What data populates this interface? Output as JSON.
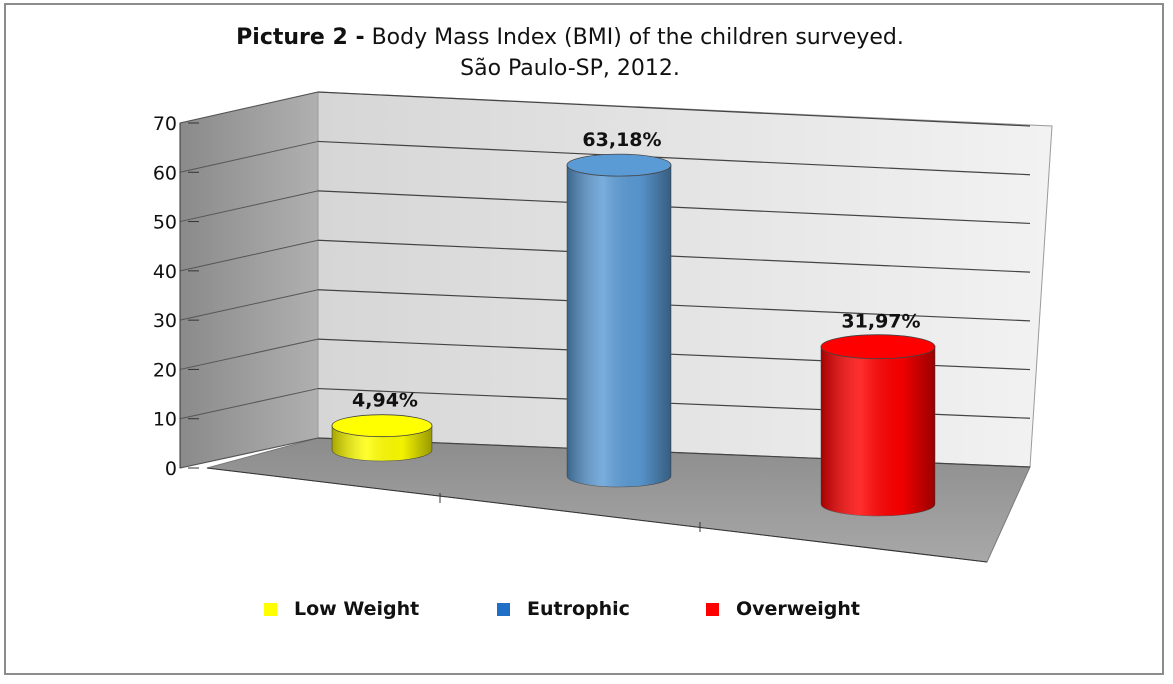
{
  "title": {
    "prefix": "Picture 2 -",
    "text": "Body Mass Index (BMI) of the children surveyed.",
    "line2": "São Paulo-SP, 2012."
  },
  "chart_data": {
    "type": "bar",
    "style": "3d-cylinder",
    "categories": [
      "Low Weight",
      "Eutrophic",
      "Overweight"
    ],
    "values": [
      4.94,
      63.18,
      31.97
    ],
    "data_labels": [
      "4,94%",
      "63,18%",
      "31,97%"
    ],
    "colors": [
      "#ffff00",
      "#5b9bd5",
      "#ff0000"
    ],
    "yticks": [
      "0",
      "10",
      "20",
      "30",
      "40",
      "50",
      "60",
      "70"
    ],
    "ylim": [
      0,
      70
    ],
    "grid": true,
    "legend_position": "bottom",
    "legend": [
      {
        "name": "Low Weight",
        "color": "#ffff00"
      },
      {
        "name": "Eutrophic",
        "color": "#1e6fc5"
      },
      {
        "name": "Overweight",
        "color": "#ff0000"
      }
    ]
  }
}
